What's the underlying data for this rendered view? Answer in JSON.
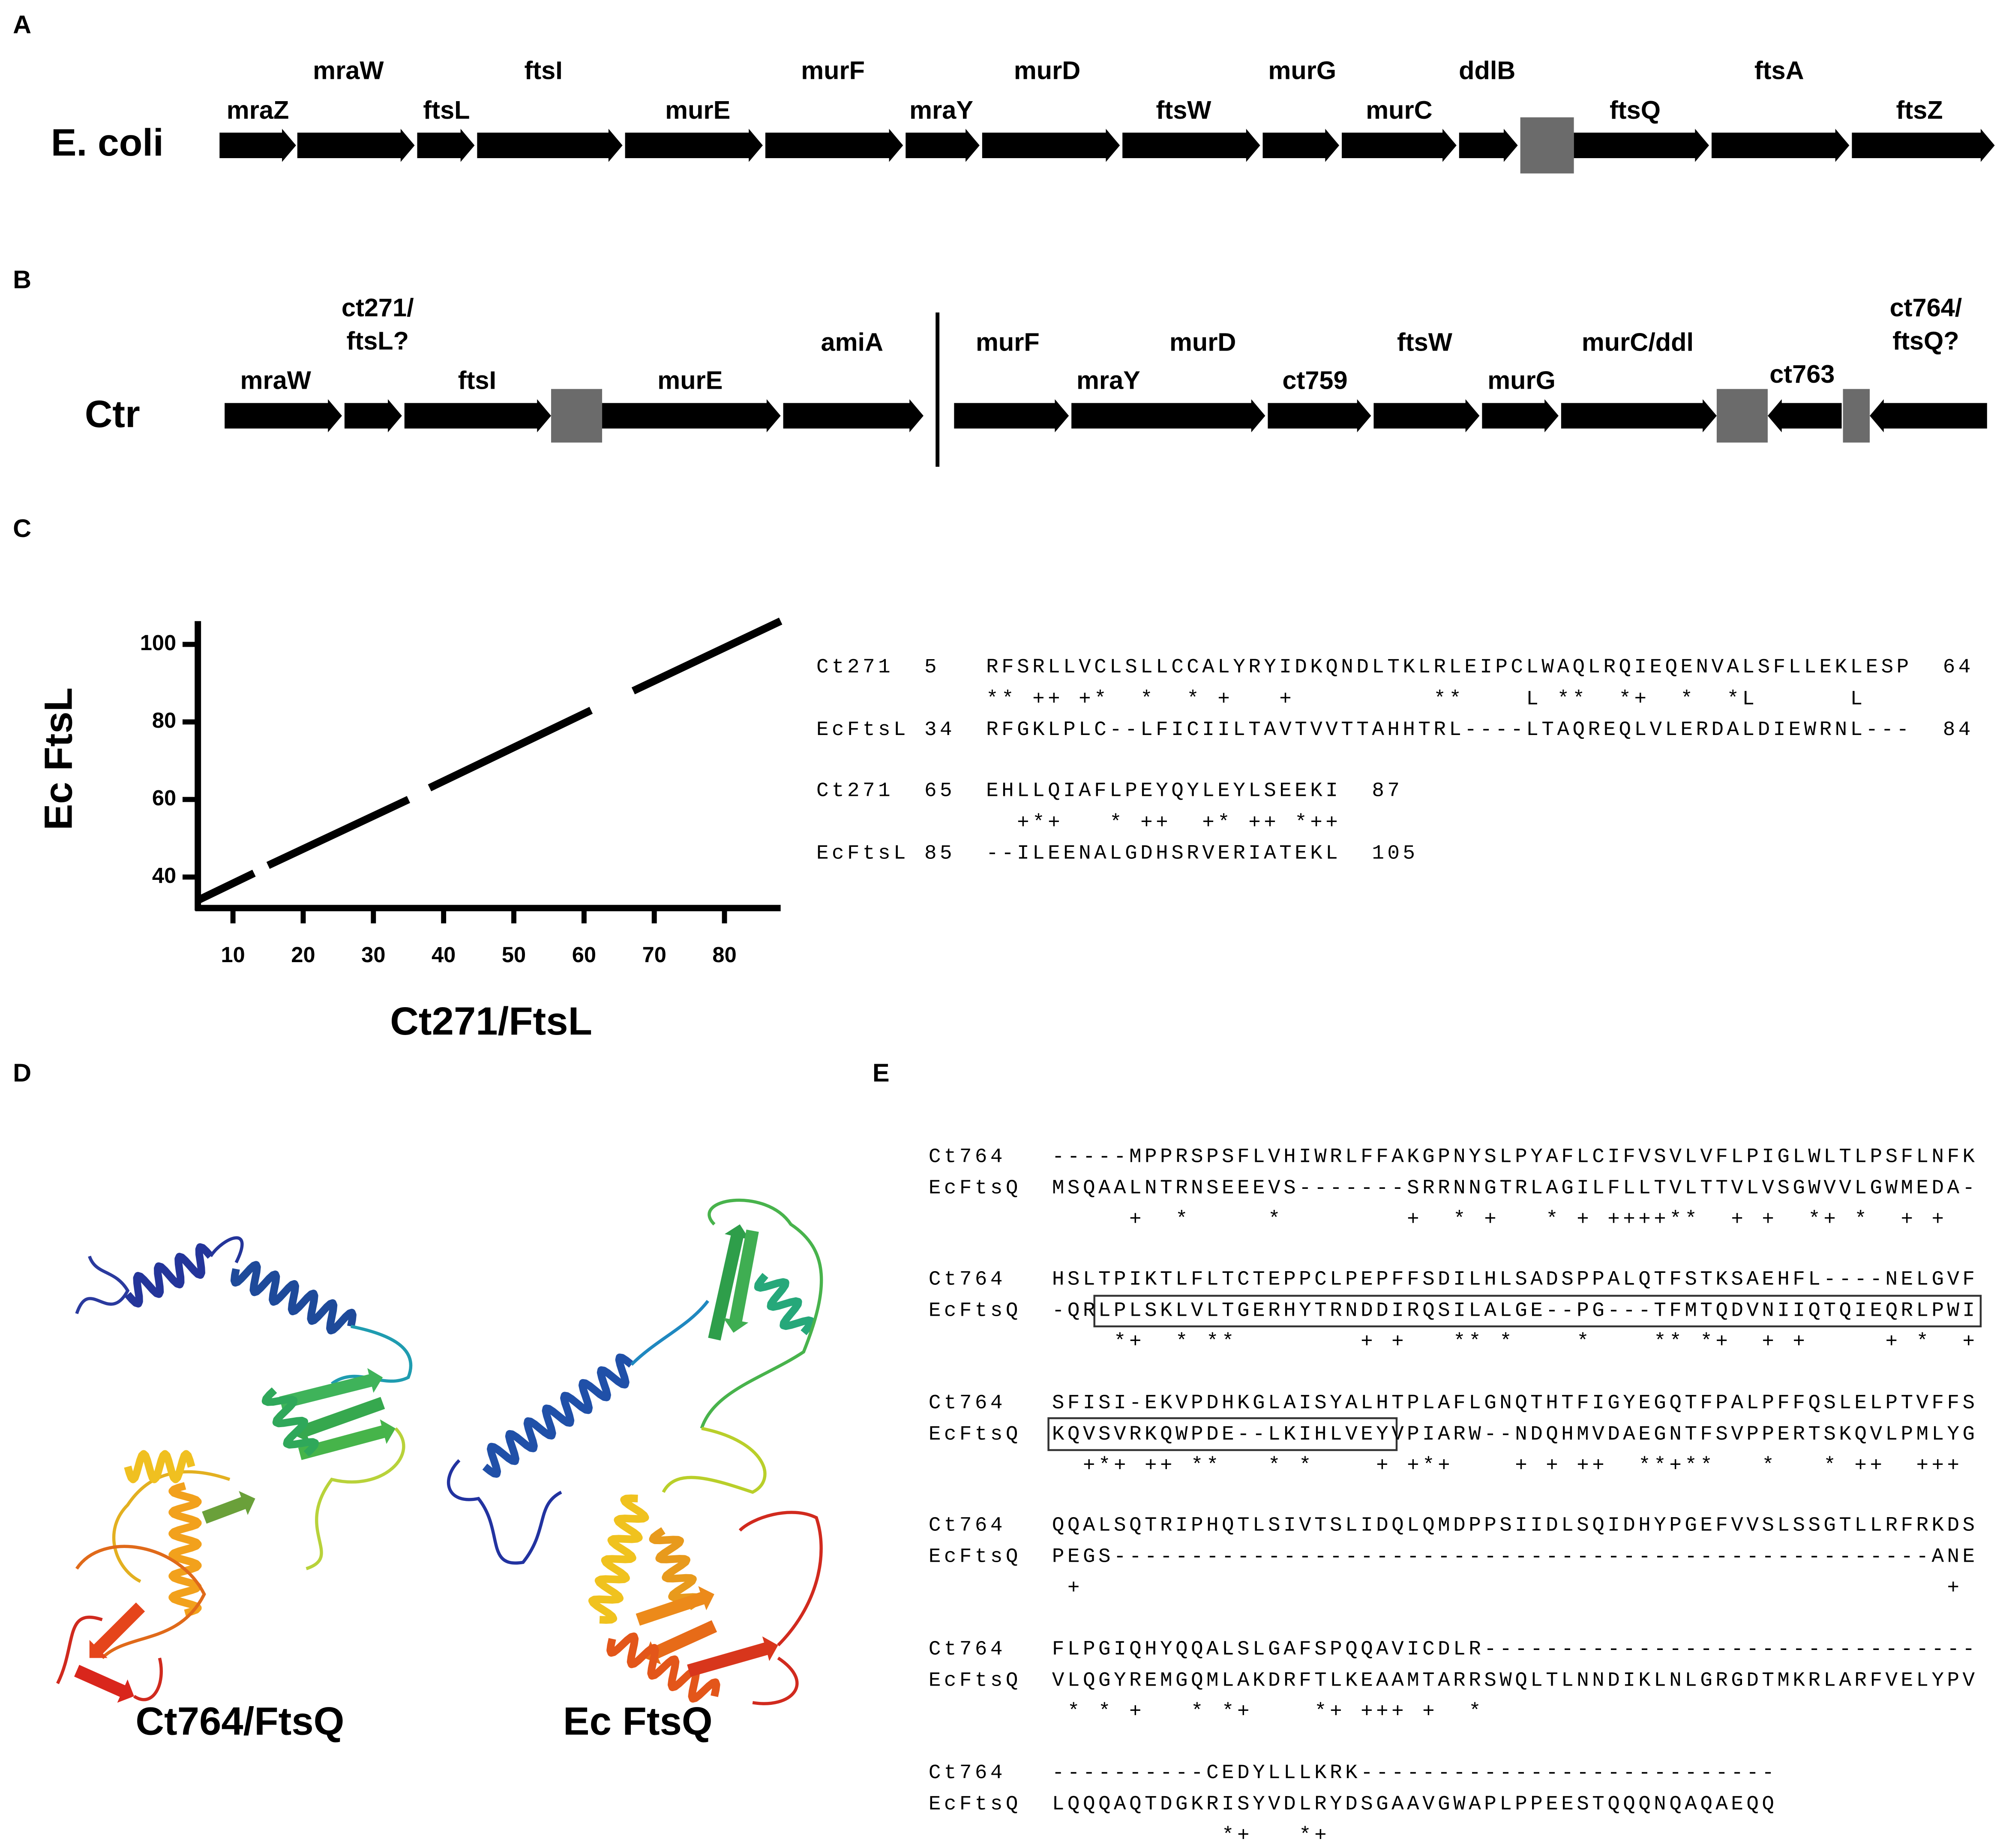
{
  "panel_a": {
    "label": "A",
    "organism": "E. coli",
    "genes": [
      "mraZ",
      "mraW",
      "ftsL",
      "ftsI",
      "murE",
      "murF",
      "mraY",
      "murD",
      "ftsW",
      "murG",
      "murC",
      "ddlB",
      "ftsQ",
      "ftsA",
      "ftsZ"
    ]
  },
  "panel_b": {
    "label": "B",
    "organism": "Ctr",
    "genes": [
      [
        "mraW"
      ],
      [
        "ct271/",
        "ftsL?"
      ],
      [
        "ftsI"
      ],
      [
        "murE"
      ],
      [
        "amiA"
      ],
      [
        "murF"
      ],
      [
        "mraY"
      ],
      [
        "murD"
      ],
      [
        "ct759"
      ],
      [
        "ftsW"
      ],
      [
        "murG"
      ],
      [
        "murC/ddl"
      ],
      [
        "ct763"
      ],
      [
        "ct764/",
        "ftsQ?"
      ]
    ]
  },
  "panel_c": {
    "label": "C",
    "alignment": [
      "Ct271  5   RFSRLLVCLSLLCCALYRYIDKQNDLTKLRLEIPCLWAQLRQIEQENVALSFLLEKLESP  64",
      "           ** ++ +*  *  * +   +         **    L **  *+  *  *L      L",
      "EcFtsL 34  RFGKLPLC--LFICIILTAVTVVTTAHHTRL----LTAQREQLVLERDALDIEWRNL---  84",
      "Ct271  65  EHLLQIAFLPEYQYLEYLSEEKI  87",
      "             +*+   * ++  +* ++ *++",
      "EcFtsL 85  --ILEENALGDHSRVERIATEKL  105"
    ]
  },
  "chart_data": {
    "type": "line",
    "xlabel": "Ct271/FtsL",
    "ylabel": "Ec FtsL",
    "x": [
      5,
      13,
      14,
      15,
      35,
      36.5,
      38,
      61,
      64,
      67,
      88
    ],
    "series": [
      {
        "color": "#000000",
        "values": [
          34,
          41,
          null,
          43,
          60,
          null,
          63,
          83,
          null,
          88,
          106
        ]
      }
    ],
    "xlim": [
      5,
      88
    ],
    "ylim": [
      32,
      106
    ],
    "xticks": [
      10,
      20,
      30,
      40,
      50,
      60,
      70,
      80
    ],
    "yticks": [
      40,
      60,
      80,
      100
    ],
    "grid": false
  },
  "panel_d": {
    "label": "D",
    "structures": [
      "Ct764/FtsQ",
      "Ec FtsQ"
    ]
  },
  "panel_e": {
    "label": "E",
    "blocks": [
      [
        "Ct764   -----MPPRSPSFLVHIWRLFFAKGPNYSLPYAFLCIFVSVLVFLPIGLWLTLPSFLNFK",
        "EcFtsQ  MSQAALNTRNSEEEVS-------SRRNNGTRLAGILFLLTVLTTVLVSGWVVLGWMEDA-",
        "             +  *     *        +  * +   * + ++++**  + +  *+ *  + +"
      ],
      [
        "Ct764   HSLTPIKTLFLTCTEPPCLPEPFFSDILHLSADSPPALQTFSTKSAEHFL----NELGVF",
        "EcFtsQ  -QRLPLSKLVLTGERHYTRNDDIRQSILALGE--PG---TFMTQDVNIIQTQIEQRLPWI",
        "            *+  * **        + +   ** *    *    ** *+  + +     + *  +"
      ],
      [
        "Ct764   SFISI-EKVPDHKGLAISYALHTPLAFLGNQTHTFIGYEGQTFPALPFFQSLELPTVFFS",
        "EcFtsQ  KQVSVRKQWPDE--LKIHLVEYVPIARW--NDQHMVDAEGNTFSVPPERTSKQVLPMLYG",
        "          +*+ ++ **   * *    + +*+    + + ++  **+**   *   * ++  +++"
      ],
      [
        "Ct764   QQALSQTRIPHQTLSIVTSLIDQLQMDPPSIIDLSQIDHYPGEFVVSLSSGTLLRFRKDS",
        "EcFtsQ  PEGS-----------------------------------------------------ANE",
        "         +                                                        +"
      ],
      [
        "Ct764   FLPGIQHYQQALSLGAFSPQQAVICDLR--------------------------------",
        "EcFtsQ  VLQGYREMGQMLAKDRFTLKEAAMTARRSWQLTLNNDIKLNLGRGDTMKRLARFVELYPV",
        "         * * +   * *+    *+ +++ +  *"
      ],
      [
        "Ct764   ----------CEDYLLLKRK---------------------------",
        "EcFtsQ  LQQQAQTDGKRISYVDLRYDSGAAVGWAPLPPEESTQQQNQAQAEQQ",
        "                   *+   *+"
      ]
    ]
  }
}
